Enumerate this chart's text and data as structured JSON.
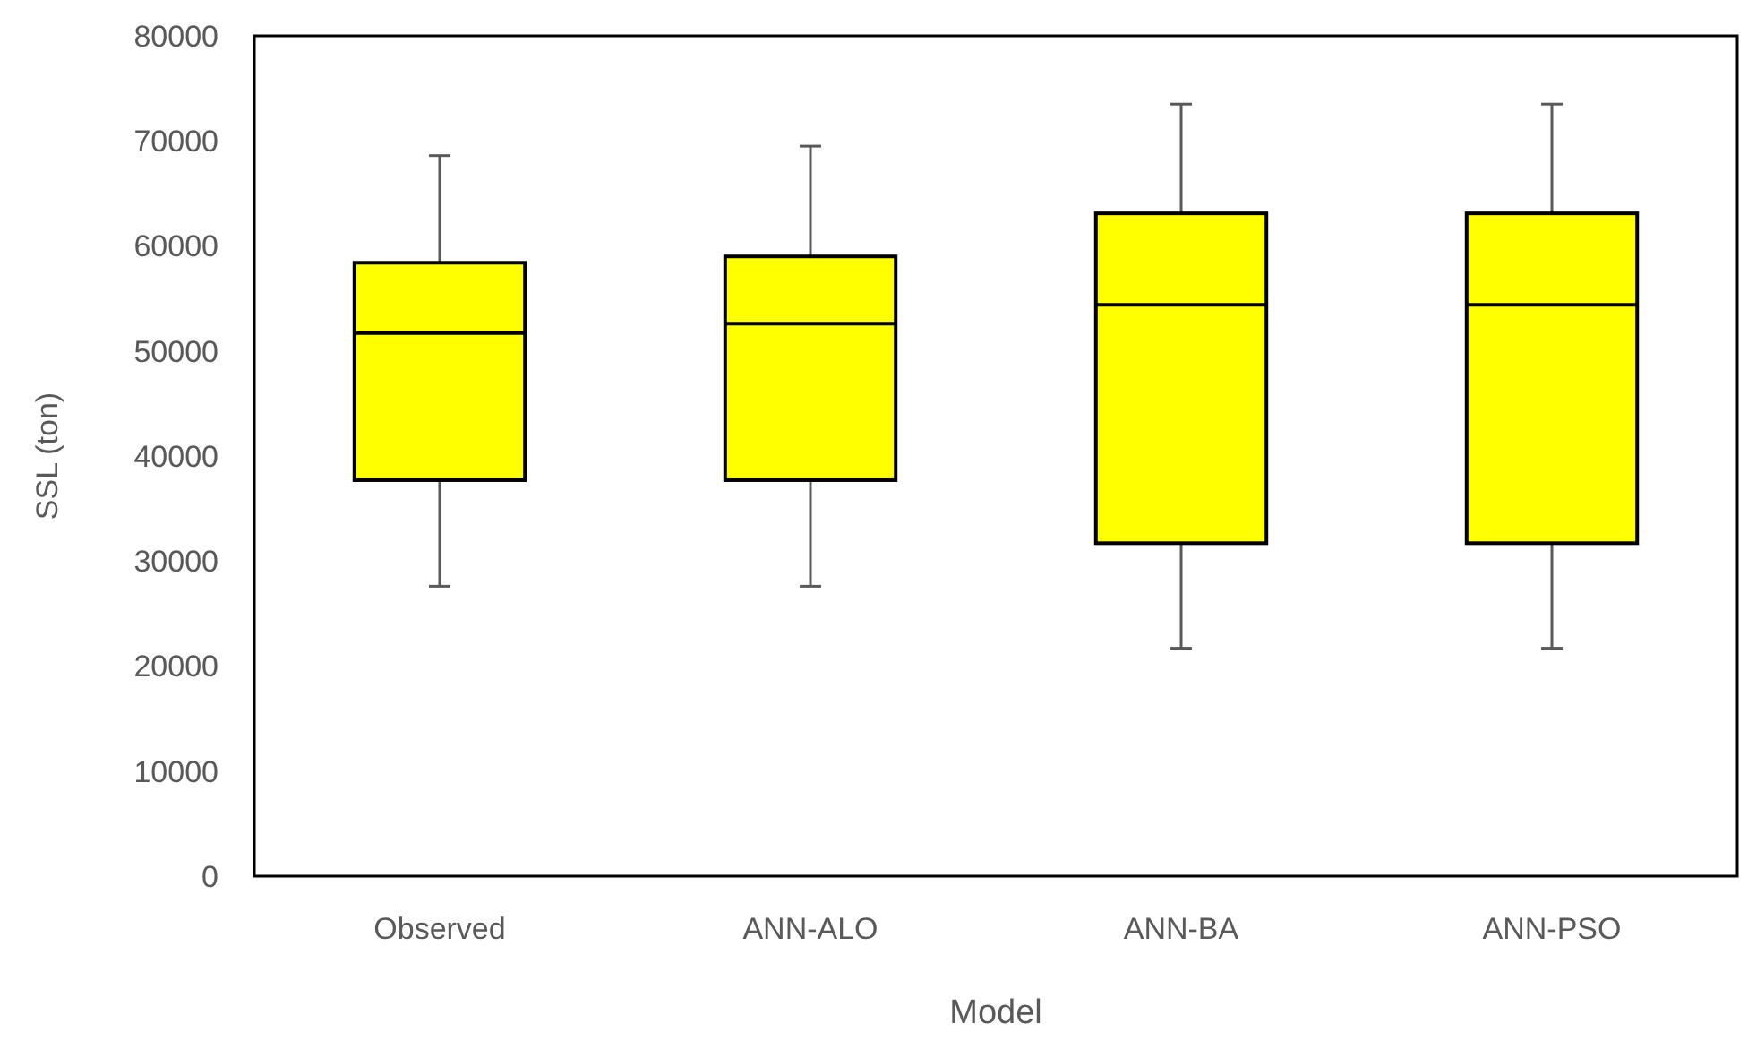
{
  "chart_data": {
    "type": "box",
    "xlabel": "Model",
    "ylabel": "SSL (ton)",
    "categories": [
      "Observed",
      "ANN-ALO",
      "ANN-BA",
      "ANN-PSO"
    ],
    "color": "#ffff00",
    "ylim": [
      0,
      80000
    ],
    "yticks": [
      0,
      10000,
      20000,
      30000,
      40000,
      50000,
      60000,
      70000,
      80000
    ],
    "grid": false,
    "boxes": [
      {
        "low": 27600,
        "q1": 37700,
        "median": 51700,
        "q3": 58400,
        "high": 68600
      },
      {
        "low": 27600,
        "q1": 37700,
        "median": 52600,
        "q3": 59000,
        "high": 69500
      },
      {
        "low": 21700,
        "q1": 31700,
        "median": 54400,
        "q3": 63100,
        "high": 73500
      },
      {
        "low": 21700,
        "q1": 31700,
        "median": 54400,
        "q3": 63100,
        "high": 73500
      }
    ]
  }
}
